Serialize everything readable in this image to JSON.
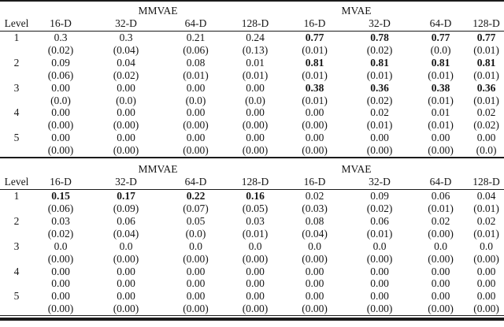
{
  "tables": [
    {
      "group_headers": [
        "MMVAE",
        "MVAE"
      ],
      "level_header": "Level",
      "col_headers": [
        "16-D",
        "32-D",
        "64-D",
        "128-D",
        "16-D",
        "32-D",
        "64-D",
        "128-D"
      ],
      "rows": [
        {
          "level": "1",
          "values": [
            "0.3",
            "0.3",
            "0.21",
            "0.24",
            "0.77",
            "0.78",
            "0.77",
            "0.77"
          ],
          "bold_cols": [
            4,
            5,
            6,
            7
          ],
          "stds": [
            "(0.02)",
            "(0.04)",
            "(0.06)",
            "(0.13)",
            "(0.01)",
            "(0.02)",
            "(0.0)",
            "(0.01)"
          ]
        },
        {
          "level": "2",
          "values": [
            "0.09",
            "0.04",
            "0.08",
            "0.01",
            "0.81",
            "0.81",
            "0.81",
            "0.81"
          ],
          "bold_cols": [
            4,
            5,
            6,
            7
          ],
          "stds": [
            "(0.06)",
            "(0.02)",
            "(0.01)",
            "(0.01)",
            "(0.01)",
            "(0.01)",
            "(0.01)",
            "(0.01)"
          ]
        },
        {
          "level": "3",
          "values": [
            "0.00",
            "0.00",
            "0.00",
            "0.00",
            "0.38",
            "0.36",
            "0.38",
            "0.36"
          ],
          "bold_cols": [
            4,
            5,
            6,
            7
          ],
          "stds": [
            "(0.0)",
            "(0.0)",
            "(0.0)",
            "(0.0)",
            "(0.01)",
            "(0.02)",
            "(0.01)",
            "(0.01)"
          ]
        },
        {
          "level": "4",
          "values": [
            "0.00",
            "0.00",
            "0.00",
            "0.00",
            "0.00",
            "0.02",
            "0.01",
            "0.02"
          ],
          "bold_cols": [],
          "stds": [
            "(0.00)",
            "(0.00)",
            "(0.00)",
            "(0.00)",
            "(0.00)",
            "(0.01)",
            "(0.01)",
            "(0.02)"
          ]
        },
        {
          "level": "5",
          "values": [
            "0.00",
            "0.00",
            "0.00",
            "0.00",
            "0.00",
            "0.00",
            "0.00",
            "0.00"
          ],
          "bold_cols": [],
          "stds": [
            "(0.00)",
            "(0.00)",
            "(0.00)",
            "(0.00)",
            "(0.00)",
            "(0.00)",
            "(0.00)",
            "(0.0)"
          ]
        }
      ]
    },
    {
      "group_headers": [
        "MMVAE",
        "MVAE"
      ],
      "level_header": "Level",
      "col_headers": [
        "16-D",
        "32-D",
        "64-D",
        "128-D",
        "16-D",
        "32-D",
        "64-D",
        "128-D"
      ],
      "rows": [
        {
          "level": "1",
          "values": [
            "0.15",
            "0.17",
            "0.22",
            "0.16",
            "0.02",
            "0.09",
            "0.06",
            "0.04"
          ],
          "bold_cols": [
            0,
            1,
            2,
            3
          ],
          "stds": [
            "(0.06)",
            "(0.09)",
            "(0.07)",
            "(0.05)",
            "(0.03)",
            "(0.02)",
            "(0.01)",
            "(0.01)"
          ]
        },
        {
          "level": "2",
          "values": [
            "0.03",
            "0.06",
            "0.05",
            "0.03",
            "0.08",
            "0.06",
            "0.02",
            "0.02"
          ],
          "bold_cols": [],
          "stds": [
            "(0.02)",
            "(0.04)",
            "(0.0)",
            "(0.01)",
            "(0.04)",
            "(0.01)",
            "(0.00)",
            "(0.01)"
          ]
        },
        {
          "level": "3",
          "values": [
            "0.0",
            "0.0",
            "0.0",
            "0.0",
            "0.0",
            "0.0",
            "0.0",
            "0.0"
          ],
          "bold_cols": [],
          "stds": [
            "(0.00)",
            "(0.00)",
            "(0.00)",
            "(0.00)",
            "(0.00)",
            "(0.00)",
            "(0.00)",
            "(0.00)"
          ]
        },
        {
          "level": "4",
          "values": [
            "0.00",
            "0.00",
            "0.00",
            "0.00",
            "0.00",
            "0.00",
            "0.00",
            "0.00"
          ],
          "bold_cols": [],
          "stds": [
            "0.00",
            "0.00",
            "0.00",
            "0.00",
            "0.00",
            "0.00",
            "0.00",
            "0.00"
          ]
        },
        {
          "level": "5",
          "values": [
            "0.00",
            "0.00",
            "0.00",
            "0.00",
            "0.00",
            "0.00",
            "0.00",
            "0.00"
          ],
          "bold_cols": [],
          "stds": [
            "(0.00)",
            "(0.00)",
            "(0.00)",
            "(0.00)",
            "(0.00)",
            "(0.00)",
            "(0.00)",
            "(0.00)"
          ]
        }
      ]
    }
  ]
}
